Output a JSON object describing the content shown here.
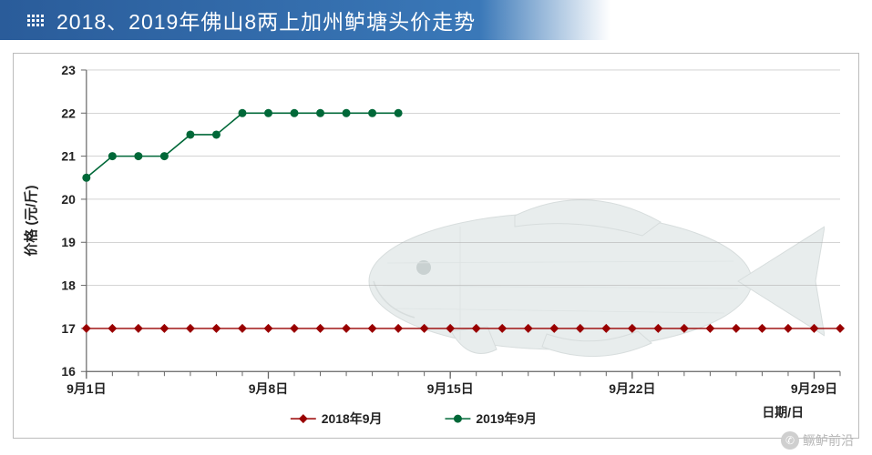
{
  "title": "2018、2019年佛山8两上加州鲈塘头价走势",
  "chart": {
    "type": "line",
    "ylabel": "价格 (元/斤)",
    "xlabel": "日期/日",
    "ylim": [
      16,
      23
    ],
    "ytick_step": 1,
    "yticks": [
      16,
      17,
      18,
      19,
      20,
      21,
      22,
      23
    ],
    "xlim_days": [
      1,
      30
    ],
    "xticks": [
      {
        "day": 1,
        "label": "9月1日"
      },
      {
        "day": 8,
        "label": "9月8日"
      },
      {
        "day": 15,
        "label": "9月15日"
      },
      {
        "day": 22,
        "label": "9月22日"
      },
      {
        "day": 29,
        "label": "9月29日"
      }
    ],
    "series": [
      {
        "name": "2018年9月",
        "color": "#990000",
        "marker": "diamond",
        "marker_size": 5,
        "line_width": 1.4,
        "data": [
          {
            "day": 1,
            "v": 17
          },
          {
            "day": 2,
            "v": 17
          },
          {
            "day": 3,
            "v": 17
          },
          {
            "day": 4,
            "v": 17
          },
          {
            "day": 5,
            "v": 17
          },
          {
            "day": 6,
            "v": 17
          },
          {
            "day": 7,
            "v": 17
          },
          {
            "day": 8,
            "v": 17
          },
          {
            "day": 9,
            "v": 17
          },
          {
            "day": 10,
            "v": 17
          },
          {
            "day": 11,
            "v": 17
          },
          {
            "day": 12,
            "v": 17
          },
          {
            "day": 13,
            "v": 17
          },
          {
            "day": 14,
            "v": 17
          },
          {
            "day": 15,
            "v": 17
          },
          {
            "day": 16,
            "v": 17
          },
          {
            "day": 17,
            "v": 17
          },
          {
            "day": 18,
            "v": 17
          },
          {
            "day": 19,
            "v": 17
          },
          {
            "day": 20,
            "v": 17
          },
          {
            "day": 21,
            "v": 17
          },
          {
            "day": 22,
            "v": 17
          },
          {
            "day": 23,
            "v": 17
          },
          {
            "day": 24,
            "v": 17
          },
          {
            "day": 25,
            "v": 17
          },
          {
            "day": 26,
            "v": 17
          },
          {
            "day": 27,
            "v": 17
          },
          {
            "day": 28,
            "v": 17
          },
          {
            "day": 29,
            "v": 17
          },
          {
            "day": 30,
            "v": 17
          }
        ]
      },
      {
        "name": "2019年9月",
        "color": "#006838",
        "marker": "circle",
        "marker_size": 4.5,
        "line_width": 1.6,
        "data": [
          {
            "day": 1,
            "v": 20.5
          },
          {
            "day": 2,
            "v": 21
          },
          {
            "day": 3,
            "v": 21
          },
          {
            "day": 4,
            "v": 21
          },
          {
            "day": 5,
            "v": 21.5
          },
          {
            "day": 6,
            "v": 21.5
          },
          {
            "day": 7,
            "v": 22
          },
          {
            "day": 8,
            "v": 22
          },
          {
            "day": 9,
            "v": 22
          },
          {
            "day": 10,
            "v": 22
          },
          {
            "day": 11,
            "v": 22
          },
          {
            "day": 12,
            "v": 22
          },
          {
            "day": 13,
            "v": 22
          }
        ]
      }
    ],
    "legend": {
      "position": "bottom-center",
      "items": [
        "2018年9月",
        "2019年9月"
      ]
    },
    "grid_color": "#a8a8a8",
    "grid_width": 0.5,
    "axis_color": "#666666",
    "background_color": "#ffffff",
    "tick_fontsize": 14,
    "label_fontsize": 15,
    "label_fontweight": "bold"
  },
  "watermark": {
    "icon": "wechat",
    "text": "鳜鲈前沿"
  }
}
